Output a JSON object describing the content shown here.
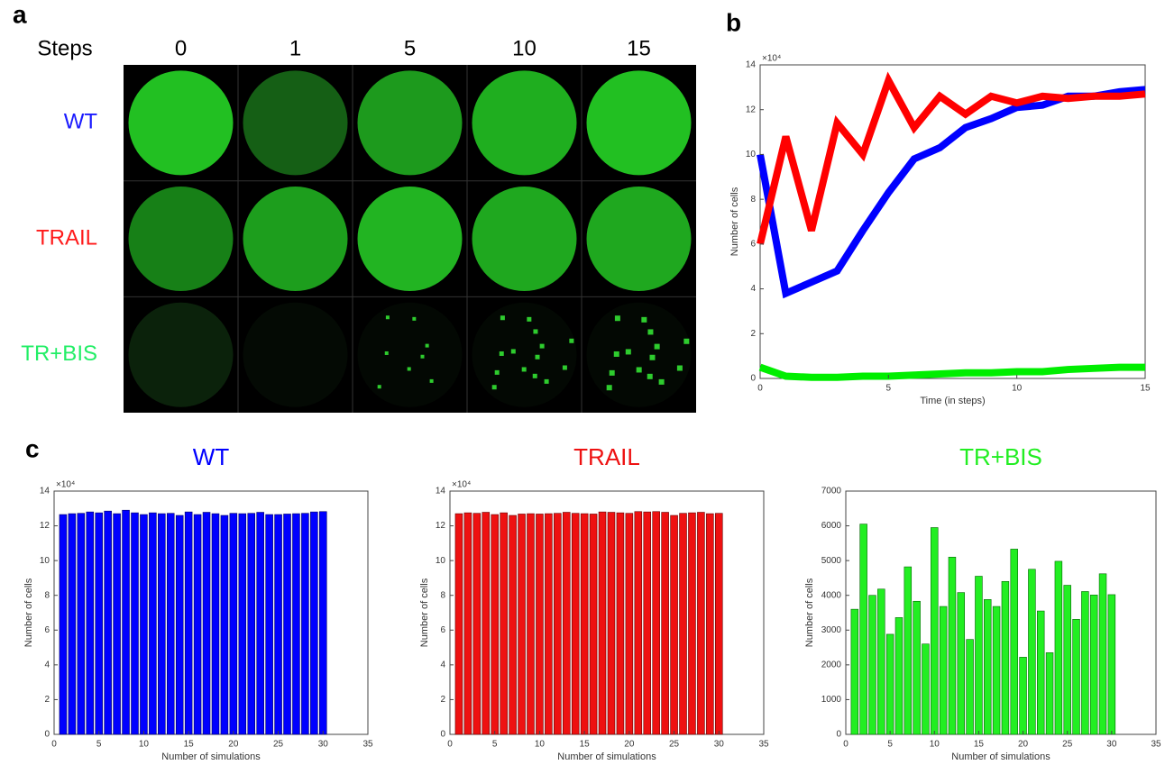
{
  "panel_labels": [
    "a",
    "b",
    "c"
  ],
  "image_grid": {
    "header": "Steps",
    "columns": [
      0,
      1,
      5,
      10,
      15
    ],
    "rows": [
      {
        "label": "WT",
        "color": "#1a1aff"
      },
      {
        "label": "TRAIL",
        "color": "#ff1a1a"
      },
      {
        "label": "TR+BIS",
        "color": "#22ee66"
      }
    ]
  },
  "chart_data": [
    {
      "type": "line",
      "x": [
        0,
        1,
        2,
        3,
        4,
        5,
        6,
        7,
        8,
        9,
        10,
        11,
        12,
        13,
        14,
        15
      ],
      "xlabel": "Time (in steps)",
      "ylabel": "Number of cells",
      "y_scale_label": "×10⁴",
      "xlim": [
        0,
        15
      ],
      "xticks": [
        0,
        5,
        10,
        15
      ],
      "ylim": [
        0,
        14
      ],
      "yticks": [
        0,
        2,
        4,
        6,
        8,
        10,
        12,
        14
      ],
      "series": [
        {
          "color": "#0000ff",
          "values": [
            10,
            3.8,
            4.3,
            4.8,
            6.6,
            8.3,
            9.8,
            10.3,
            11.2,
            11.6,
            12.1,
            12.2,
            12.6,
            12.6,
            12.8,
            12.9
          ]
        },
        {
          "color": "#ff0000",
          "values": [
            6,
            10.8,
            6.6,
            11.4,
            10,
            13.3,
            11.2,
            12.6,
            11.8,
            12.6,
            12.3,
            12.6,
            12.5,
            12.6,
            12.6,
            12.7
          ]
        },
        {
          "color": "#00ee00",
          "values": [
            0.5,
            0.1,
            0.05,
            0.05,
            0.1,
            0.1,
            0.15,
            0.2,
            0.25,
            0.25,
            0.3,
            0.3,
            0.4,
            0.45,
            0.5,
            0.5
          ]
        }
      ]
    },
    {
      "type": "bar",
      "title": "WT",
      "color": "#0000ff",
      "edgecolor": "#000066",
      "xlabel": "Number of simulations",
      "ylabel": "Number of cells",
      "y_scale_label": "×10⁴",
      "x": [
        1,
        2,
        3,
        4,
        5,
        6,
        7,
        8,
        9,
        10,
        11,
        12,
        13,
        14,
        15,
        16,
        17,
        18,
        19,
        20,
        21,
        22,
        23,
        24,
        25,
        26,
        27,
        28,
        29,
        30
      ],
      "values": [
        12.65,
        12.7,
        12.72,
        12.8,
        12.75,
        12.85,
        12.7,
        12.9,
        12.75,
        12.65,
        12.75,
        12.7,
        12.72,
        12.6,
        12.8,
        12.65,
        12.78,
        12.7,
        12.6,
        12.72,
        12.7,
        12.72,
        12.78,
        12.65,
        12.65,
        12.68,
        12.7,
        12.72,
        12.8,
        12.82
      ],
      "xlim": [
        0,
        35
      ],
      "xticks": [
        0,
        5,
        10,
        15,
        20,
        25,
        30,
        35
      ],
      "ylim": [
        0,
        14
      ],
      "yticks": [
        0,
        2,
        4,
        6,
        8,
        10,
        12,
        14
      ]
    },
    {
      "type": "bar",
      "title": "TRAIL",
      "color": "#ee1111",
      "edgecolor": "#660000",
      "xlabel": "Number of simulations",
      "ylabel": "Number of cells",
      "y_scale_label": "×10⁴",
      "x": [
        1,
        2,
        3,
        4,
        5,
        6,
        7,
        8,
        9,
        10,
        11,
        12,
        13,
        14,
        15,
        16,
        17,
        18,
        19,
        20,
        21,
        22,
        23,
        24,
        25,
        26,
        27,
        28,
        29,
        30
      ],
      "values": [
        12.7,
        12.75,
        12.72,
        12.78,
        12.65,
        12.75,
        12.6,
        12.68,
        12.7,
        12.68,
        12.7,
        12.72,
        12.78,
        12.72,
        12.7,
        12.68,
        12.8,
        12.78,
        12.75,
        12.72,
        12.82,
        12.8,
        12.82,
        12.78,
        12.6,
        12.72,
        12.75,
        12.78,
        12.7,
        12.72
      ],
      "xlim": [
        0,
        35
      ],
      "xticks": [
        0,
        5,
        10,
        15,
        20,
        25,
        30,
        35
      ],
      "ylim": [
        0,
        14
      ],
      "yticks": [
        0,
        2,
        4,
        6,
        8,
        10,
        12,
        14
      ]
    },
    {
      "type": "bar",
      "title": "TR+BIS",
      "color": "#22ee22",
      "edgecolor": "#006600",
      "xlabel": "Number of simulations",
      "ylabel": "Number of cells",
      "x": [
        1,
        2,
        3,
        4,
        5,
        6,
        7,
        8,
        9,
        10,
        11,
        12,
        13,
        14,
        15,
        16,
        17,
        18,
        19,
        20,
        21,
        22,
        23,
        24,
        25,
        26,
        27,
        28,
        29,
        30
      ],
      "values": [
        3600,
        6050,
        4000,
        4180,
        2880,
        3360,
        4820,
        3830,
        2600,
        5950,
        3680,
        5100,
        4080,
        2730,
        4550,
        3880,
        3680,
        4400,
        5330,
        2220,
        4750,
        3550,
        2350,
        4980,
        4290,
        3310,
        4110,
        4010,
        4620,
        4020
      ],
      "xlim": [
        0,
        35
      ],
      "xticks": [
        0,
        5,
        10,
        15,
        20,
        25,
        30,
        35
      ],
      "ylim": [
        0,
        7000
      ],
      "yticks": [
        0,
        1000,
        2000,
        3000,
        4000,
        5000,
        6000,
        7000
      ]
    }
  ]
}
